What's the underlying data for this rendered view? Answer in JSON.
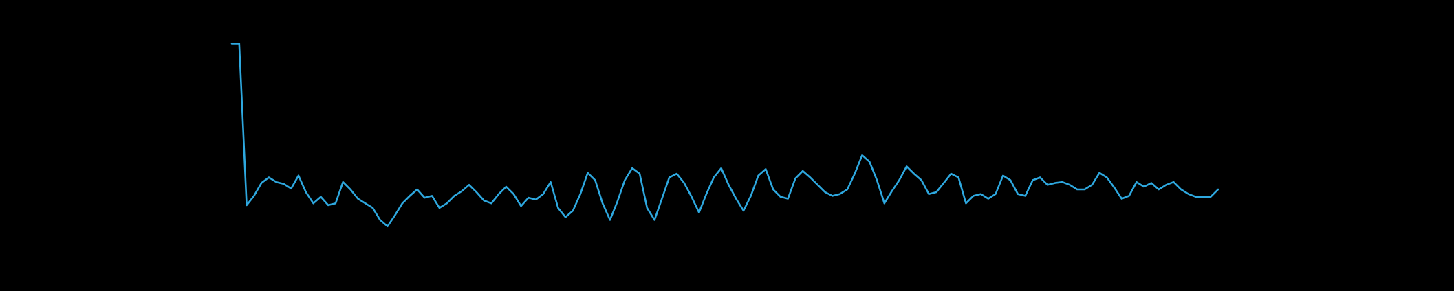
{
  "chart_data": {
    "type": "line",
    "color": "#2ea8df",
    "ylim": [
      0,
      220
    ],
    "values": [
      213,
      213,
      38,
      48,
      62,
      68,
      63,
      61,
      56,
      70,
      52,
      40,
      47,
      38,
      40,
      63,
      55,
      45,
      40,
      35,
      22,
      15,
      27,
      40,
      48,
      55,
      46,
      48,
      35,
      40,
      48,
      53,
      60,
      52,
      43,
      40,
      50,
      58,
      50,
      37,
      46,
      44,
      50,
      63,
      35,
      25,
      32,
      50,
      73,
      65,
      40,
      22,
      42,
      65,
      78,
      72,
      35,
      22,
      45,
      68,
      72,
      62,
      47,
      30,
      50,
      68,
      78,
      60,
      45,
      32,
      48,
      70,
      77,
      55,
      47,
      45,
      67,
      75,
      68,
      60,
      52,
      48,
      50,
      55,
      72,
      92,
      85,
      65,
      40,
      53,
      65,
      80,
      72,
      65,
      50,
      52,
      62,
      72,
      68,
      40,
      48,
      50,
      45,
      50,
      70,
      65,
      50,
      48,
      65,
      68,
      60,
      62,
      63,
      60,
      55,
      55,
      60,
      73,
      68,
      57,
      45,
      48,
      63,
      58,
      62,
      55,
      60,
      63,
      55,
      50,
      47,
      47,
      47,
      55
    ]
  }
}
